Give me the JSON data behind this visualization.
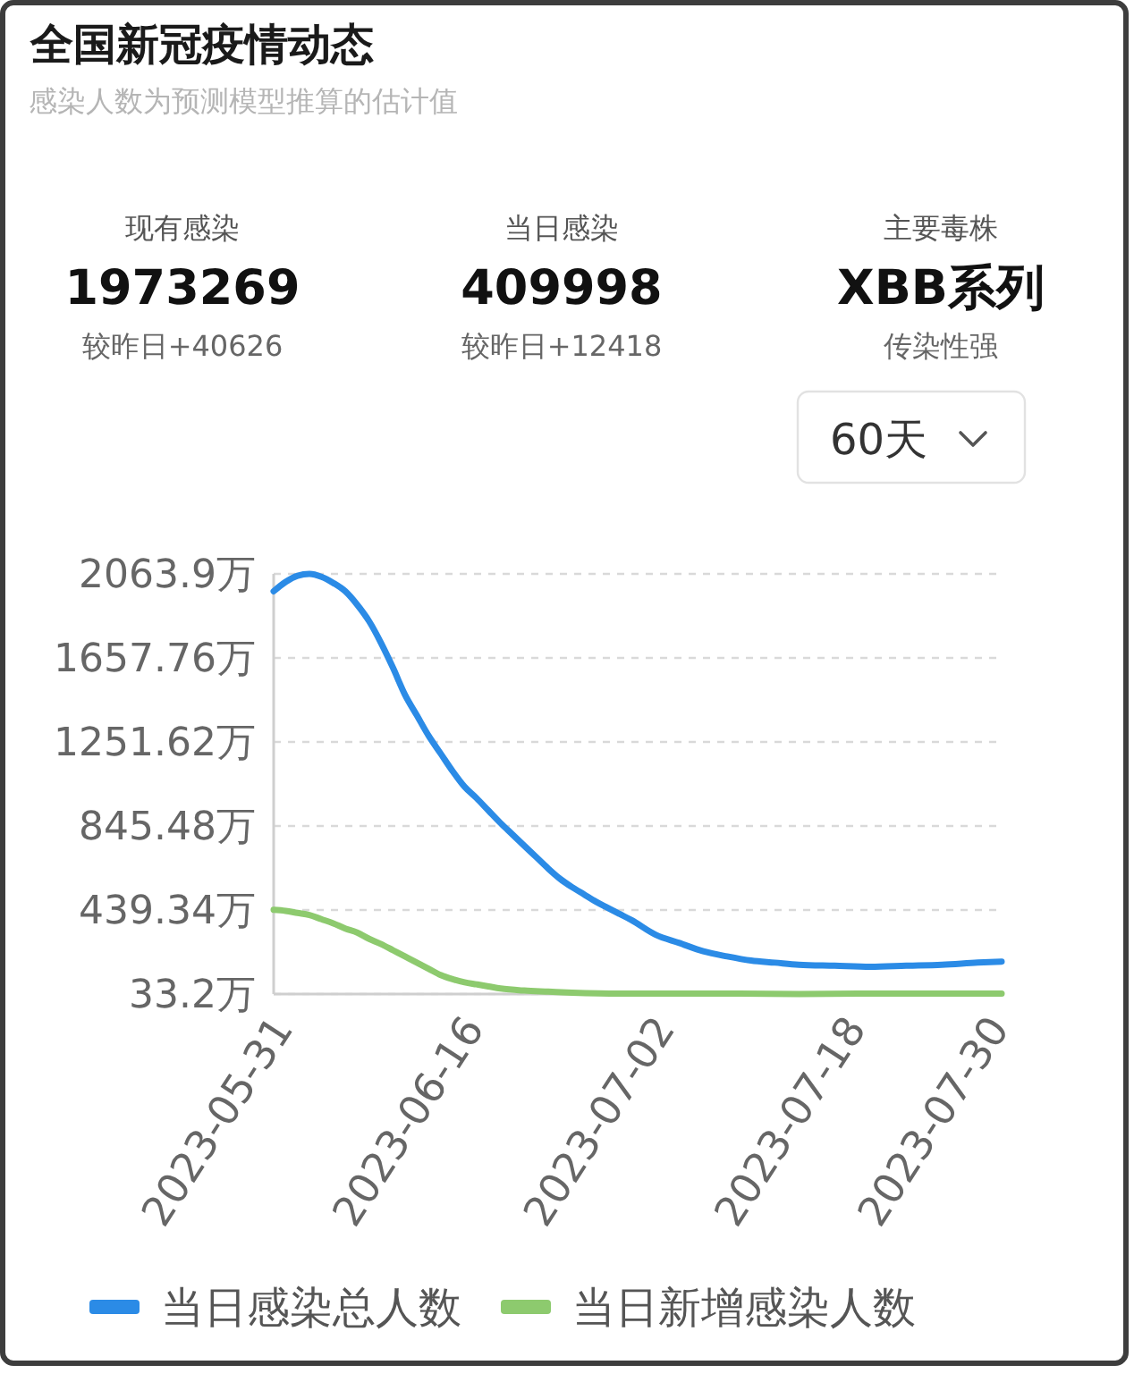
{
  "chart_data": [
    {
      "type": "other",
      "title": "全国新冠疫情动态",
      "subtitle": "感染人数为预测模型推算的估计值",
      "annotations": [
        "现有感染",
        "1973269",
        "较昨日+40626",
        "当日感染",
        "409998",
        "较昨日+12418",
        "主要毒株",
        "XBB系列",
        "传染性强",
        "60天"
      ]
    },
    {
      "type": "line",
      "xlim": [
        "2023-05-30",
        "2023-07-30"
      ],
      "xticks": [
        "2023-05-31",
        "2023-06-16",
        "2023-07-02",
        "2023-07-18",
        "2023-07-30"
      ],
      "ylim": [
        33.2,
        2063.9
      ],
      "yticks": [
        {
          "value": 33.2,
          "label": "33.2万"
        },
        {
          "value": 439.34,
          "label": "439.34万"
        },
        {
          "value": 845.48,
          "label": "845.48万"
        },
        {
          "value": 1251.62,
          "label": "1251.62万"
        },
        {
          "value": 1657.76,
          "label": "1657.76万"
        },
        {
          "value": 2063.9,
          "label": "2063.9万"
        }
      ],
      "grid": "y",
      "legend": "bottom",
      "series": [
        {
          "name": "当日感染总人数",
          "color": "#2b8be6",
          "x": [
            "2023-05-30",
            "2023-05-31",
            "2023-06-01",
            "2023-06-02",
            "2023-06-03",
            "2023-06-04",
            "2023-06-05",
            "2023-06-06",
            "2023-06-07",
            "2023-06-08",
            "2023-06-09",
            "2023-06-10",
            "2023-06-11",
            "2023-06-12",
            "2023-06-13",
            "2023-06-14",
            "2023-06-15",
            "2023-06-16",
            "2023-06-17",
            "2023-06-18",
            "2023-06-19",
            "2023-06-20",
            "2023-06-21",
            "2023-06-22",
            "2023-06-23",
            "2023-06-24",
            "2023-06-25",
            "2023-06-26",
            "2023-06-27",
            "2023-06-28",
            "2023-06-29",
            "2023-07-01",
            "2023-07-03",
            "2023-07-05",
            "2023-07-07",
            "2023-07-09",
            "2023-07-11",
            "2023-07-13",
            "2023-07-16",
            "2023-07-19",
            "2023-07-22",
            "2023-07-25",
            "2023-07-28",
            "2023-07-30"
          ],
          "values": [
            1980,
            2025,
            2055,
            2063.9,
            2050,
            2020,
            1980,
            1915,
            1835,
            1730,
            1610,
            1480,
            1380,
            1280,
            1195,
            1110,
            1035,
            980,
            920,
            860,
            805,
            750,
            695,
            640,
            590,
            550,
            515,
            480,
            450,
            420,
            390,
            320,
            280,
            240,
            215,
            195,
            185,
            175,
            170,
            165,
            170,
            175,
            185,
            190
          ]
        },
        {
          "name": "当日新增感染人数",
          "color": "#8dca6e",
          "x": [
            "2023-05-30",
            "2023-05-31",
            "2023-06-01",
            "2023-06-02",
            "2023-06-03",
            "2023-06-04",
            "2023-06-05",
            "2023-06-06",
            "2023-06-07",
            "2023-06-08",
            "2023-06-09",
            "2023-06-10",
            "2023-06-11",
            "2023-06-12",
            "2023-06-13",
            "2023-06-14",
            "2023-06-15",
            "2023-06-16",
            "2023-06-17",
            "2023-06-18",
            "2023-06-20",
            "2023-06-22",
            "2023-06-24",
            "2023-06-28",
            "2023-07-03",
            "2023-07-08",
            "2023-07-13",
            "2023-07-18",
            "2023-07-23",
            "2023-07-30"
          ],
          "values": [
            440,
            435,
            425,
            415,
            395,
            375,
            350,
            330,
            300,
            275,
            245,
            215,
            185,
            155,
            125,
            105,
            90,
            80,
            70,
            60,
            50,
            45,
            40,
            35,
            35,
            35,
            33.2,
            35,
            35,
            35
          ]
        }
      ]
    }
  ]
}
